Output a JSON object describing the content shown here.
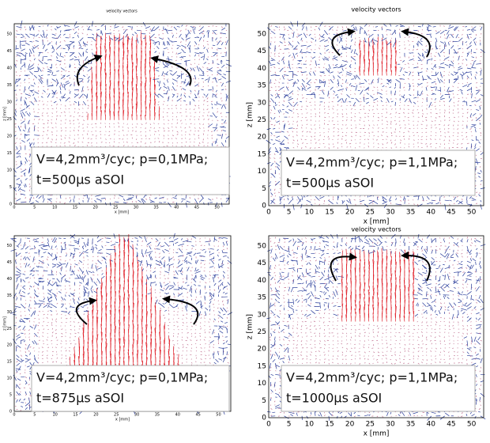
{
  "panels": [
    {
      "title": "velocity vectors",
      "x_label": "x [mm]",
      "y_label": "z [mm]",
      "x_ticks": [
        0,
        5,
        10,
        15,
        20,
        25,
        30,
        35,
        40,
        45,
        50
      ],
      "y_ticks": [
        0,
        5,
        10,
        15,
        20,
        25,
        30,
        35,
        40,
        45,
        50
      ],
      "caption": [
        "V=4,2mm³/cyc; p=0,1MPa;",
        "t=500µs aSOI"
      ]
    },
    {
      "title": "velocity vectors",
      "x_label": "x [mm]",
      "y_label": "z [mm]",
      "x_ticks": [
        0,
        5,
        10,
        15,
        20,
        25,
        30,
        35,
        40,
        45,
        50
      ],
      "y_ticks": [
        0,
        5,
        10,
        15,
        20,
        25,
        30,
        35,
        40,
        45,
        50
      ],
      "caption": [
        "V=4,2mm³/cyc; p=1,1MPa;",
        "t=500µs aSOI"
      ]
    },
    {
      "x_label": "x [mm]",
      "y_label": "z [mm]",
      "x_ticks": [
        0,
        5,
        10,
        15,
        20,
        25,
        30,
        35,
        40,
        45,
        50
      ],
      "y_ticks": [
        0,
        5,
        10,
        15,
        20,
        25,
        30,
        35,
        40,
        45,
        50
      ],
      "caption": [
        "V=4,2mm³/cyc; p=0,1MPa;",
        "t=875µs aSOI"
      ]
    },
    {
      "title": "velocity vectors",
      "x_label": "x [mm]",
      "y_label": "z [mm]",
      "x_ticks": [
        0,
        5,
        10,
        15,
        20,
        25,
        30,
        35,
        40,
        45,
        50
      ],
      "y_ticks": [
        0,
        5,
        10,
        15,
        20,
        25,
        30,
        35,
        40,
        45,
        50
      ],
      "caption": [
        "V=4,2mm³/cyc; p=1,1MPa;",
        "t=1000µs aSOI"
      ]
    }
  ]
}
